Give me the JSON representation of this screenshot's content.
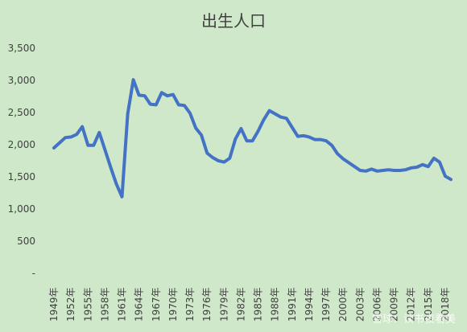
{
  "chart_data": {
    "type": "line",
    "title": "出生人口",
    "xlabel": "",
    "ylabel": "",
    "ylim": [
      0,
      3500
    ],
    "y_ticks": [
      0,
      500,
      1000,
      1500,
      2000,
      2500,
      3000,
      3500
    ],
    "y_tick_labels": [
      "-",
      "500",
      "1,000",
      "1,500",
      "2,000",
      "2,500",
      "3,000",
      "3,500"
    ],
    "grid": false,
    "legend": "none",
    "series_color": "#4472c4",
    "x_tick_labels": [
      "1949年",
      "1952年",
      "1955年",
      "1958年",
      "1961年",
      "1964年",
      "1967年",
      "1970年",
      "1973年",
      "1976年",
      "1979年",
      "1982年",
      "1985年",
      "1988年",
      "1991年",
      "1994年",
      "1997年",
      "2000年",
      "2003年",
      "2006年",
      "2009年",
      "2012年",
      "2015年",
      "2018年"
    ],
    "x": [
      1949,
      1950,
      1951,
      1952,
      1953,
      1954,
      1955,
      1956,
      1957,
      1958,
      1959,
      1960,
      1961,
      1962,
      1963,
      1964,
      1965,
      1966,
      1967,
      1968,
      1969,
      1970,
      1971,
      1972,
      1973,
      1974,
      1975,
      1976,
      1977,
      1978,
      1979,
      1980,
      1981,
      1982,
      1983,
      1984,
      1985,
      1986,
      1987,
      1988,
      1989,
      1990,
      1991,
      1992,
      1993,
      1994,
      1995,
      1996,
      1997,
      1998,
      1999,
      2000,
      2001,
      2002,
      2003,
      2004,
      2005,
      2006,
      2007,
      2008,
      2009,
      2010,
      2011,
      2012,
      2013,
      2014,
      2015,
      2016,
      2017,
      2018,
      2019
    ],
    "series": [
      {
        "values": [
          1950,
          2030,
          2110,
          2120,
          2160,
          2280,
          1990,
          1990,
          2190,
          1920,
          1650,
          1390,
          1190,
          2480,
          3010,
          2770,
          2760,
          2630,
          2620,
          2810,
          2760,
          2780,
          2620,
          2610,
          2490,
          2260,
          2150,
          1870,
          1800,
          1750,
          1730,
          1790,
          2090,
          2250,
          2060,
          2060,
          2210,
          2390,
          2530,
          2480,
          2430,
          2410,
          2270,
          2130,
          2140,
          2120,
          2080,
          2080,
          2060,
          1990,
          1860,
          1780,
          1720,
          1660,
          1600,
          1590,
          1620,
          1590,
          1600,
          1610,
          1600,
          1600,
          1610,
          1640,
          1650,
          1690,
          1660,
          1790,
          1730,
          1510,
          1460
        ]
      }
    ]
  },
  "watermark": "雪球：读书夜看美"
}
